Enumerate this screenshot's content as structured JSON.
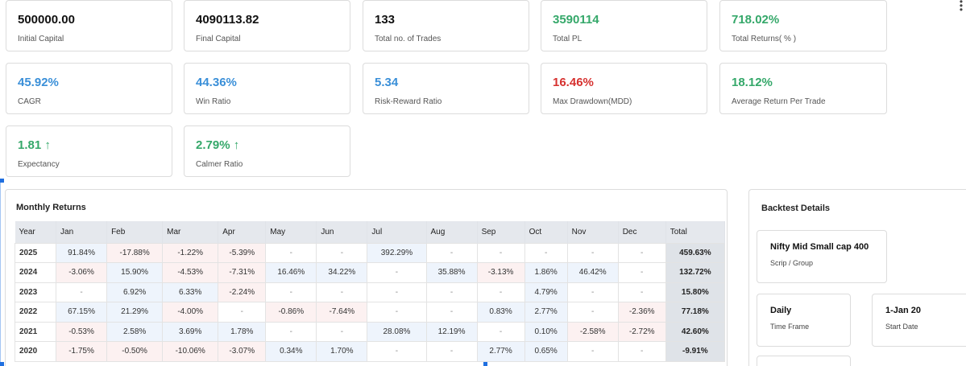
{
  "stats": [
    {
      "value": "500000.00",
      "label": "Initial Capital",
      "color": "black"
    },
    {
      "value": "4090113.82",
      "label": "Final Capital",
      "color": "black"
    },
    {
      "value": "133",
      "label": "Total no. of Trades",
      "color": "black"
    },
    {
      "value": "3590114",
      "label": "Total PL",
      "color": "green"
    },
    {
      "value": "718.02%",
      "label": "Total Returns( % )",
      "color": "green"
    },
    {
      "value": "45.92%",
      "label": "CAGR",
      "color": "blue"
    },
    {
      "value": "44.36%",
      "label": "Win Ratio",
      "color": "blue"
    },
    {
      "value": "5.34",
      "label": "Risk-Reward Ratio",
      "color": "blue"
    },
    {
      "value": "16.46%",
      "label": "Max Drawdown(MDD)",
      "color": "red"
    },
    {
      "value": "18.12%",
      "label": "Average Return Per Trade",
      "color": "green"
    },
    {
      "value": "1.81 ↑",
      "label": "Expectancy",
      "color": "green"
    },
    {
      "value": "2.79% ↑",
      "label": "Calmer Ratio",
      "color": "green"
    }
  ],
  "monthly": {
    "title": "Monthly Returns",
    "headers": [
      "Year",
      "Jan",
      "Feb",
      "Mar",
      "Apr",
      "May",
      "Jun",
      "Jul",
      "Aug",
      "Sep",
      "Oct",
      "Nov",
      "Dec",
      "Total"
    ],
    "rows": [
      {
        "year": "2025",
        "cells": [
          "91.84%",
          "-17.88%",
          "-1.22%",
          "-5.39%",
          "-",
          "-",
          "392.29%",
          "-",
          "-",
          "-",
          "-",
          "-"
        ],
        "total": "459.63%"
      },
      {
        "year": "2024",
        "cells": [
          "-3.06%",
          "15.90%",
          "-4.53%",
          "-7.31%",
          "16.46%",
          "34.22%",
          "-",
          "35.88%",
          "-3.13%",
          "1.86%",
          "46.42%",
          "-"
        ],
        "total": "132.72%"
      },
      {
        "year": "2023",
        "cells": [
          "-",
          "6.92%",
          "6.33%",
          "-2.24%",
          "-",
          "-",
          "-",
          "-",
          "-",
          "4.79%",
          "-",
          "-"
        ],
        "total": "15.80%"
      },
      {
        "year": "2022",
        "cells": [
          "67.15%",
          "21.29%",
          "-4.00%",
          "-",
          "-0.86%",
          "-7.64%",
          "-",
          "-",
          "0.83%",
          "2.77%",
          "-",
          "-2.36%"
        ],
        "total": "77.18%"
      },
      {
        "year": "2021",
        "cells": [
          "-0.53%",
          "2.58%",
          "3.69%",
          "1.78%",
          "-",
          "-",
          "28.08%",
          "12.19%",
          "-",
          "0.10%",
          "-2.58%",
          "-2.72%"
        ],
        "total": "42.60%"
      },
      {
        "year": "2020",
        "cells": [
          "-1.75%",
          "-0.50%",
          "-10.06%",
          "-3.07%",
          "0.34%",
          "1.70%",
          "-",
          "-",
          "2.77%",
          "0.65%",
          "-",
          "-"
        ],
        "total": "-9.91%"
      }
    ]
  },
  "backtest": {
    "title": "Backtest Details",
    "scrip": {
      "value": "Nifty Mid Small cap 400",
      "label": "Scrip / Group"
    },
    "timeframe": {
      "value": "Daily",
      "label": "Time Frame"
    },
    "start": {
      "value": "1-Jan 20",
      "label": "Start Date"
    }
  },
  "colors": {
    "blue": "#3a8fd8",
    "green": "#35a86a",
    "red": "#d6312f",
    "black": "#111111"
  }
}
